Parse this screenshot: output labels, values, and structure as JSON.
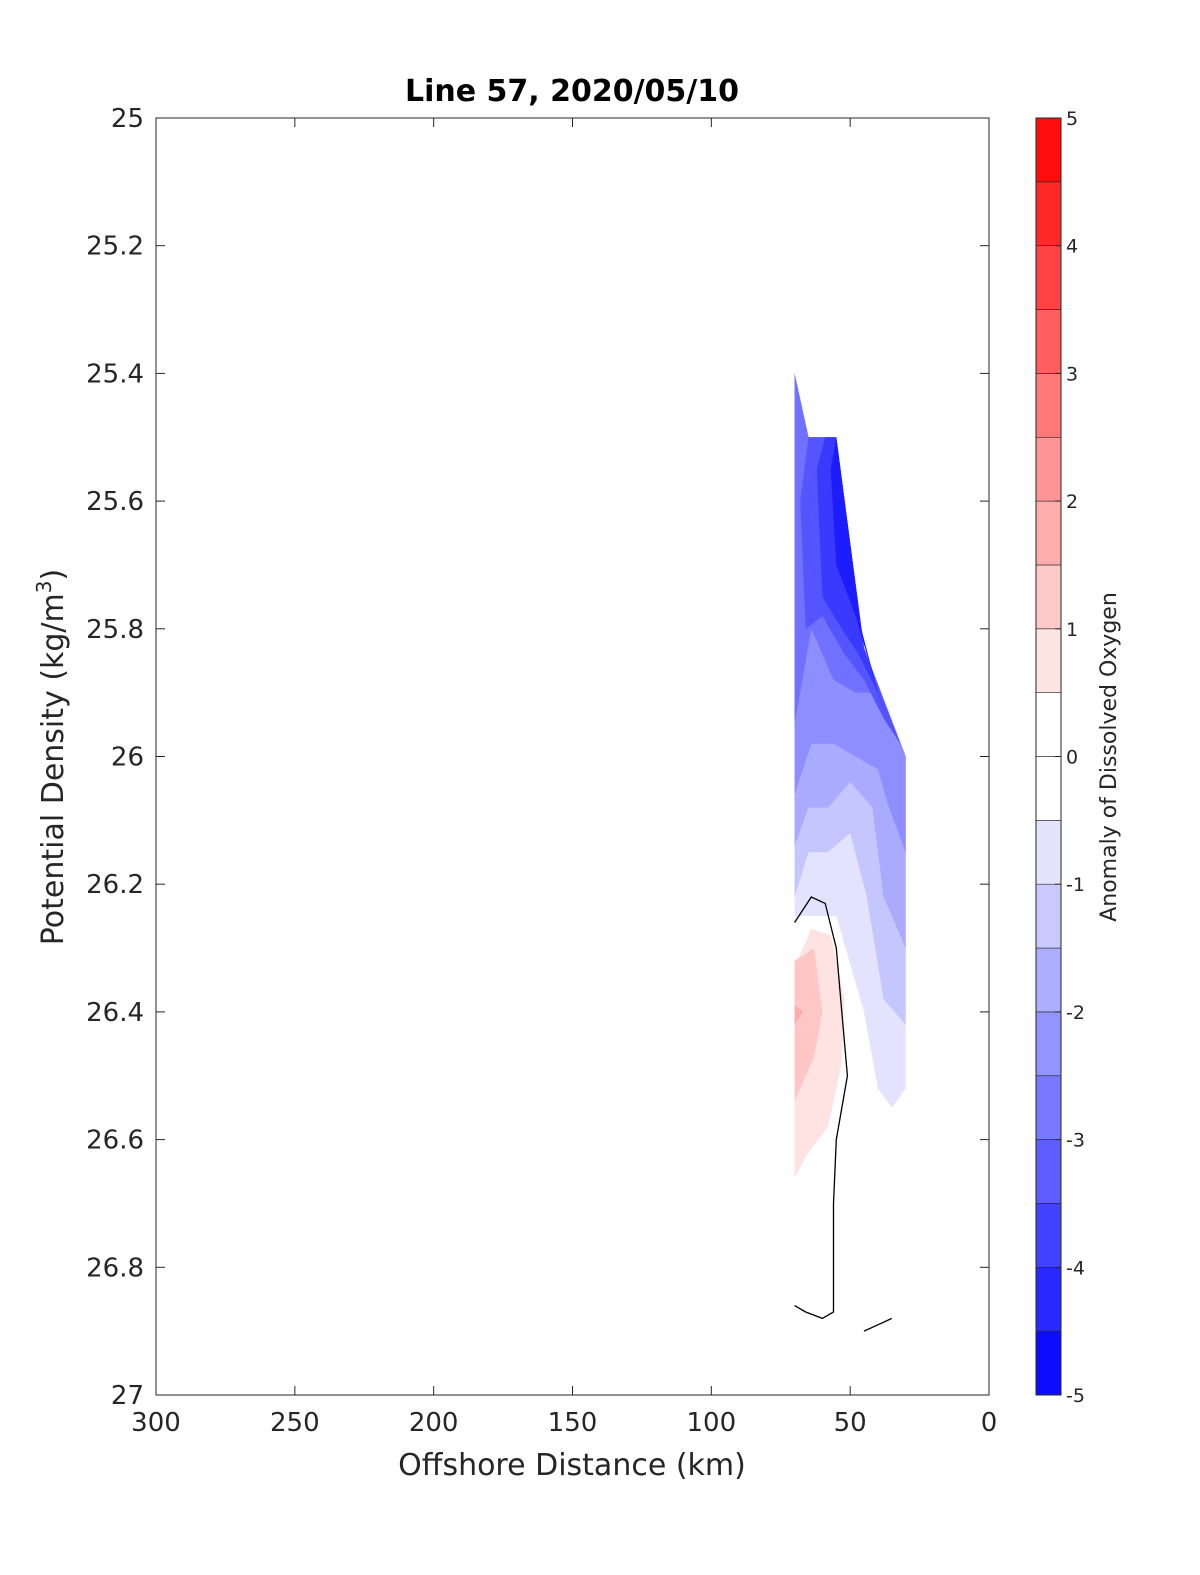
{
  "chart_data": {
    "type": "contour",
    "title": "Line 57, 2020/05/10",
    "xlabel": "Offshore Distance (km)",
    "ylabel": "Potential Density (kg/m",
    "ylabel_sup": "3",
    "ylabel_close": ")",
    "xlim": [
      300,
      0
    ],
    "ylim": [
      25,
      27
    ],
    "xticks": [
      300,
      250,
      200,
      150,
      100,
      50,
      0
    ],
    "yticks": [
      "25",
      "25.2",
      "25.4",
      "25.6",
      "25.8",
      "26",
      "26.2",
      "26.4",
      "26.6",
      "26.8",
      "27"
    ],
    "colorbar": {
      "label": "Anomaly of Dissolved Oxygen",
      "range": [
        -5,
        5
      ],
      "step": 0.5,
      "ticks": [
        -5,
        -4,
        -3,
        -2,
        -1,
        0,
        1,
        2,
        3,
        4,
        5
      ]
    },
    "regions": [
      {
        "level": -1.0,
        "color": "#e3e3ff",
        "points": [
          [
            70,
            26.25
          ],
          [
            70,
            25.4
          ],
          [
            65,
            25.5
          ],
          [
            55,
            25.5
          ],
          [
            45,
            25.83
          ],
          [
            30,
            26.0
          ],
          [
            30,
            26.52
          ],
          [
            35,
            26.55
          ],
          [
            40,
            26.52
          ],
          [
            45,
            26.4
          ],
          [
            55,
            26.25
          ]
        ]
      },
      {
        "level": -1.5,
        "color": "#c6c6ff",
        "points": [
          [
            70,
            26.22
          ],
          [
            70,
            25.4
          ],
          [
            65,
            25.5
          ],
          [
            55,
            25.5
          ],
          [
            45,
            25.83
          ],
          [
            30,
            26.0
          ],
          [
            30,
            26.42
          ],
          [
            38,
            26.38
          ],
          [
            44,
            26.22
          ],
          [
            50,
            26.12
          ],
          [
            58,
            26.15
          ],
          [
            65,
            26.15
          ]
        ]
      },
      {
        "level": -2.0,
        "color": "#aaaaff",
        "points": [
          [
            70,
            26.14
          ],
          [
            70,
            25.4
          ],
          [
            65,
            25.5
          ],
          [
            55,
            25.5
          ],
          [
            45,
            25.83
          ],
          [
            30,
            26.0
          ],
          [
            30,
            26.3
          ],
          [
            38,
            26.22
          ],
          [
            42,
            26.08
          ],
          [
            50,
            26.04
          ],
          [
            58,
            26.08
          ],
          [
            65,
            26.08
          ]
        ]
      },
      {
        "level": -2.5,
        "color": "#8e8eff",
        "points": [
          [
            70,
            26.06
          ],
          [
            70,
            25.4
          ],
          [
            65,
            25.5
          ],
          [
            55,
            25.5
          ],
          [
            45,
            25.83
          ],
          [
            30,
            26.0
          ],
          [
            30,
            26.15
          ],
          [
            36,
            26.08
          ],
          [
            40,
            26.02
          ],
          [
            48,
            26.0
          ],
          [
            56,
            25.98
          ],
          [
            64,
            25.98
          ]
        ]
      },
      {
        "level": -3.0,
        "color": "#7171ff",
        "points": [
          [
            70,
            25.95
          ],
          [
            70,
            25.4
          ],
          [
            65,
            25.5
          ],
          [
            55,
            25.5
          ],
          [
            45,
            25.83
          ],
          [
            30,
            26.0
          ],
          [
            35,
            25.95
          ],
          [
            41,
            25.9
          ],
          [
            48,
            25.9
          ],
          [
            56,
            25.88
          ],
          [
            64,
            25.8
          ]
        ]
      },
      {
        "level": -3.5,
        "color": "#5555ff",
        "points": [
          [
            66,
            25.8
          ],
          [
            68,
            25.6
          ],
          [
            65,
            25.5
          ],
          [
            55,
            25.5
          ],
          [
            45,
            25.83
          ],
          [
            32,
            25.98
          ],
          [
            38,
            25.94
          ],
          [
            45,
            25.88
          ],
          [
            52,
            25.84
          ],
          [
            60,
            25.78
          ]
        ]
      },
      {
        "level": -4.0,
        "color": "#3939ff",
        "points": [
          [
            60,
            25.75
          ],
          [
            62,
            25.55
          ],
          [
            59,
            25.5
          ],
          [
            55,
            25.5
          ],
          [
            45,
            25.83
          ],
          [
            36,
            25.95
          ],
          [
            40,
            25.9
          ],
          [
            47,
            25.84
          ],
          [
            53,
            25.8
          ]
        ]
      },
      {
        "level": -4.5,
        "color": "#1c1cff",
        "points": [
          [
            55,
            25.7
          ],
          [
            57,
            25.55
          ],
          [
            55,
            25.5
          ],
          [
            46,
            25.8
          ],
          [
            40,
            25.9
          ],
          [
            48,
            25.78
          ]
        ]
      },
      {
        "level": 0.5,
        "color": "#ffe3e3",
        "points": [
          [
            70,
            26.66
          ],
          [
            70,
            26.33
          ],
          [
            64,
            26.27
          ],
          [
            57,
            26.28
          ],
          [
            52,
            26.38
          ],
          [
            53,
            26.48
          ],
          [
            58,
            26.58
          ],
          [
            65,
            26.62
          ]
        ]
      },
      {
        "level": 1.0,
        "color": "#ffc6c6",
        "points": [
          [
            70,
            26.54
          ],
          [
            70,
            26.32
          ],
          [
            63,
            26.3
          ],
          [
            60,
            26.4
          ],
          [
            63,
            26.47
          ],
          [
            67,
            26.51
          ]
        ]
      },
      {
        "level": 1.5,
        "color": "#ffaaaa",
        "points": [
          [
            70,
            26.42
          ],
          [
            70,
            26.39
          ],
          [
            67,
            26.4
          ]
        ]
      }
    ],
    "contour_lines": [
      {
        "level": 0,
        "points": [
          [
            70,
            26.26
          ],
          [
            64,
            26.22
          ],
          [
            59,
            26.23
          ],
          [
            55,
            26.3
          ],
          [
            53,
            26.4
          ],
          [
            51,
            26.5
          ],
          [
            55,
            26.6
          ],
          [
            56,
            26.7
          ],
          [
            56,
            26.8
          ],
          [
            56,
            26.87
          ],
          [
            60,
            26.88
          ],
          [
            66,
            26.87
          ],
          [
            70,
            26.86
          ]
        ]
      },
      {
        "level": 0,
        "points": [
          [
            45,
            26.9
          ],
          [
            40,
            26.89
          ],
          [
            35,
            26.88
          ]
        ]
      }
    ]
  }
}
